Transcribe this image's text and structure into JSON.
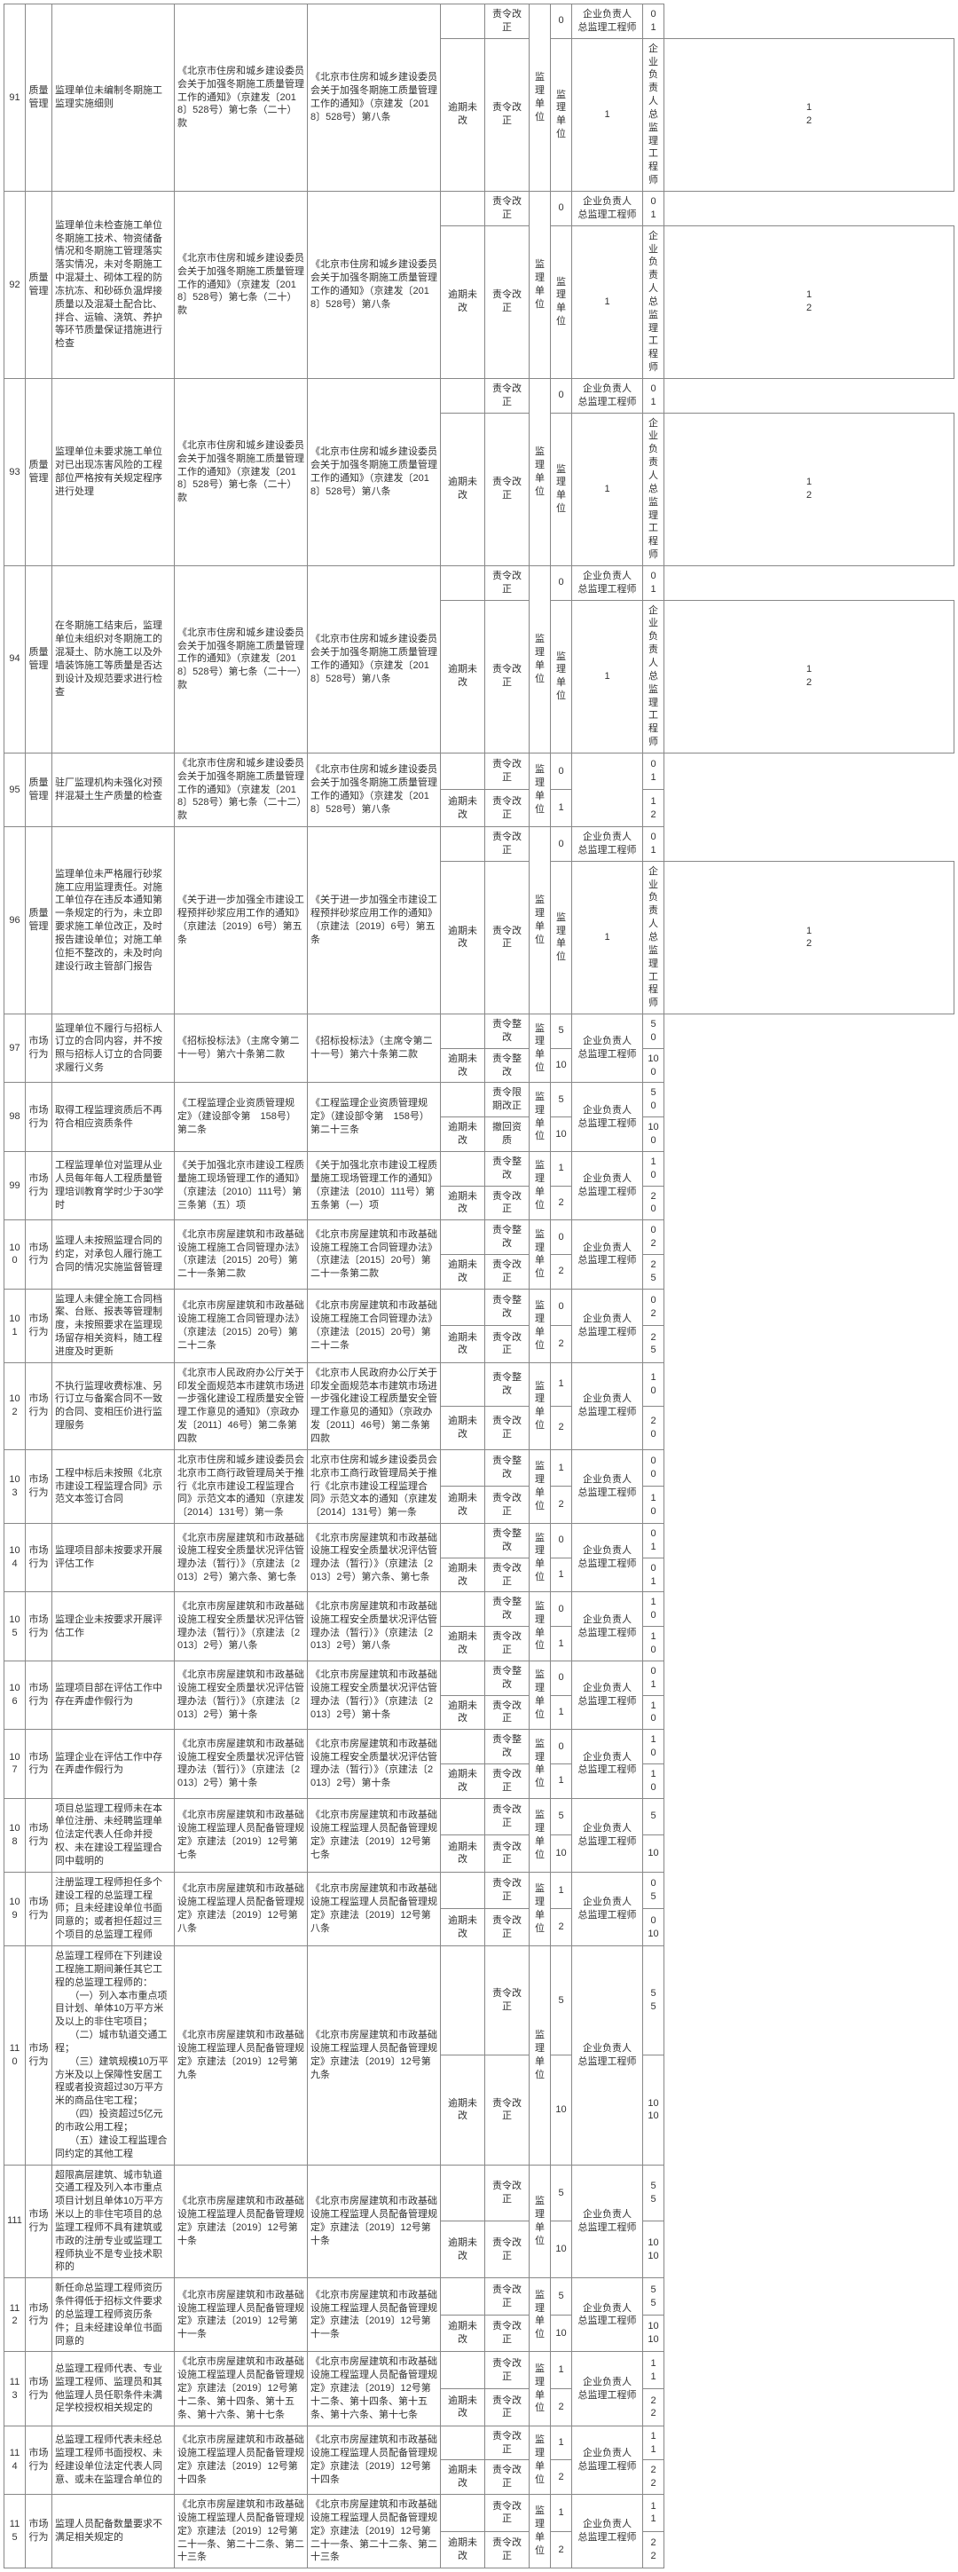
{
  "table": {
    "rows": [
      {
        "id": "91",
        "cat": "质量管理",
        "desc": "监理单位未编制冬期施工监理实施细则",
        "law1": "《北京市住房和城乡建设委员会关于加强冬期施工质量管理工作的通知》（京建发〔2018〕528号）第七条（二十）款",
        "law2": "《北京市住房和城乡建设委员会关于加强冬期施工质量管理工作的通知》（京建发〔2018〕528号）第八条",
        "sub": [
          {
            "s": "",
            "r": "责令改正",
            "u": "监理单位",
            "n": "0",
            "p": "企业负责人\n总监理工程师",
            "v": "0\n1"
          },
          {
            "s": "逾期未改",
            "r": "责令改正",
            "u": "监理单位",
            "n": "1",
            "p": "企业负责人\n总监理工程师",
            "v": "1\n2"
          }
        ]
      },
      {
        "id": "92",
        "cat": "质量管理",
        "desc": "监理单位未检查施工单位冬期施工技术、物资储备情况和冬期施工管理落实落实情况，未对冬期施工中混凝土、砌体工程的防冻抗冻、和砂砾负温焊接质量以及混凝土配合比、拌合、运输、浇筑、养护等环节质量保证措施进行检查",
        "law1": "《北京市住房和城乡建设委员会关于加强冬期施工质量管理工作的通知》（京建发〔2018〕528号）第七条（二十）款",
        "law2": "《北京市住房和城乡建设委员会关于加强冬期施工质量管理工作的通知》（京建发〔2018〕528号）第八条",
        "sub": [
          {
            "s": "",
            "r": "责令改正",
            "u": "监理单位",
            "n": "0",
            "p": "企业负责人\n总监理工程师",
            "v": "0\n1"
          },
          {
            "s": "逾期未改",
            "r": "责令改正",
            "u": "监理单位",
            "n": "1",
            "p": "企业负责人\n总监理工程师",
            "v": "1\n2"
          }
        ]
      },
      {
        "id": "93",
        "cat": "质量管理",
        "desc": "监理单位未要求施工单位对已出现冻害风险的工程部位严格按有关规定程序进行处理",
        "law1": "《北京市住房和城乡建设委员会关于加强冬期施工质量管理工作的通知》（京建发〔2018〕528号）第七条（二十）款",
        "law2": "《北京市住房和城乡建设委员会关于加强冬期施工质量管理工作的通知》（京建发〔2018〕528号）第八条",
        "sub": [
          {
            "s": "",
            "r": "责令改正",
            "u": "监理单位",
            "n": "0",
            "p": "企业负责人\n总监理工程师",
            "v": "0\n1"
          },
          {
            "s": "逾期未改",
            "r": "责令改正",
            "u": "监理单位",
            "n": "1",
            "p": "企业负责人\n总监理工程师",
            "v": "1\n2"
          }
        ]
      },
      {
        "id": "94",
        "cat": "质量管理",
        "desc": "在冬期施工结束后，监理单位未组织对冬期施工的混凝土、防水施工以及外墙装饰施工等质量是否达到设计及规范要求进行检查",
        "law1": "《北京市住房和城乡建设委员会关于加强冬期施工质量管理工作的通知》（京建发〔2018〕528号）第七条（二十一）款",
        "law2": "《北京市住房和城乡建设委员会关于加强冬期施工质量管理工作的通知》（京建发〔2018〕528号）第八条",
        "sub": [
          {
            "s": "",
            "r": "责令改正",
            "u": "监理单位",
            "n": "0",
            "p": "企业负责人\n总监理工程师",
            "v": "0\n1"
          },
          {
            "s": "逾期未改",
            "r": "责令改正",
            "u": "监理单位",
            "n": "1",
            "p": "企业负责人\n总监理工程师",
            "v": "1\n2"
          }
        ]
      },
      {
        "id": "95",
        "cat": "质量管理",
        "desc": "驻厂监理机构未强化对预拌混凝土生产质量的检查",
        "law1": "《北京市住房和城乡建设委员会关于加强冬期施工质量管理工作的通知》（京建发〔2018〕528号）第七条（二十二）款",
        "law2": "《北京市住房和城乡建设委员会关于加强冬期施工质量管理工作的通知》（京建发〔2018〕528号）第八条",
        "sub": [
          {
            "s": "",
            "r": "责令改正",
            "u": "监理单位",
            "n": "0",
            "p": "",
            "v": "0\n1"
          },
          {
            "s": "逾期未改",
            "r": "责令改正",
            "u": "",
            "n": "1",
            "p": "",
            "v": "1\n2"
          }
        ]
      },
      {
        "id": "96",
        "cat": "质量管理",
        "desc": "监理单位未严格履行砂浆施工应用监理责任。对施工单位存在违反本通知第一条规定的行为，未立即要求施工单位改正，及时报告建设单位；对施工单位拒不整改的，未及时向建设行政主管部门报告",
        "law1": "《关于进一步加强全市建设工程预拌砂浆应用工作的通知》（京建法〔2019〕6号）第五条",
        "law2": "《关于进一步加强全市建设工程预拌砂浆应用工作的通知》（京建法〔2019〕6号）第五条",
        "sub": [
          {
            "s": "",
            "r": "责令改正",
            "u": "监理单位",
            "n": "0",
            "p": "企业负责人\n总监理工程师",
            "v": "0\n1"
          },
          {
            "s": "逾期未改",
            "r": "责令改正",
            "u": "监理单位",
            "n": "1",
            "p": "企业负责人\n总监理工程师",
            "v": "1\n2"
          }
        ]
      },
      {
        "id": "97",
        "cat": "市场行为",
        "desc": "监理单位不履行与招标人订立的合同内容，并不按照与招标人订立的合同要求履行义务",
        "law1": "《招标投标法》（主席令第二十一号）第六十条第二款",
        "law2": "《招标投标法》（主席令第二十一号）第六十条第二款",
        "sub": [
          {
            "s": "",
            "r": "责令整改",
            "u": "监理单位",
            "n": "5",
            "p": "企业负责人\n总监理工程师",
            "v": "5\n0"
          },
          {
            "s": "逾期未改",
            "r": "责令整改",
            "u": "",
            "n": "10",
            "p": "",
            "v": "10\n0"
          }
        ]
      },
      {
        "id": "98",
        "cat": "市场行为",
        "desc": "取得工程监理资质后不再符合相应资质条件",
        "law1": "《工程监理企业资质管理规定》（建设部令第　158号）第二条",
        "law2": "《工程监理企业资质管理规定》（建设部令第　158号）第二十三条",
        "sub": [
          {
            "s": "",
            "r": "责令限期改正",
            "u": "监理单位",
            "n": "5",
            "p": "企业负责人\n总监理工程师",
            "v": "5\n0"
          },
          {
            "s": "逾期未改",
            "r": "撤回资质",
            "u": "",
            "n": "10",
            "p": "",
            "v": "10\n0"
          }
        ]
      },
      {
        "id": "99",
        "cat": "市场行为",
        "desc": "工程监理单位对监理从业人员每年每人工程质量管理培训教育学时少于30学时",
        "law1": "《关于加强北京市建设工程质量施工现场管理工作的通知》（京建法〔2010〕111号）第三条第（五）项",
        "law2": "《关于加强北京市建设工程质量施工现场管理工作的通知》（京建法〔2010〕111号）第五条第（一）项",
        "sub": [
          {
            "s": "",
            "r": "责令整改",
            "u": "监理单位",
            "n": "1",
            "p": "企业负责人\n总监理工程师",
            "v": "1\n0"
          },
          {
            "s": "逾期未改",
            "r": "责令改正",
            "u": "",
            "n": "2",
            "p": "",
            "v": "2\n0"
          }
        ]
      },
      {
        "id": "100",
        "cat": "市场行为",
        "desc": "监理人未按照监理合同的约定，对承包人履行施工合同的情况实施监督管理",
        "law1": "《北京市房屋建筑和市政基础设施工程施工合同管理办法》（京建法〔2015〕20号）第二十一条第二款",
        "law2": "《北京市房屋建筑和市政基础设施工程施工合同管理办法》（京建法〔2015〕20号）第二十一条第二款",
        "sub": [
          {
            "s": "",
            "r": "责令整改",
            "u": "监理单位",
            "n": "0",
            "p": "企业负责人\n总监理工程师",
            "v": "0\n2"
          },
          {
            "s": "逾期未改",
            "r": "责令改正",
            "u": "",
            "n": "2",
            "p": "",
            "v": "2\n5"
          }
        ]
      },
      {
        "id": "101",
        "cat": "市场行为",
        "desc": "监理人未健全施工合同档案、台账、报表等管理制度，未按照要求在监理现场留存相关资料，随工程进度及时更新",
        "law1": "《北京市房屋建筑和市政基础设施工程施工合同管理办法》（京建法〔2015〕20号）第二十二条",
        "law2": "《北京市房屋建筑和市政基础设施工程施工合同管理办法》（京建法〔2015〕20号）第二十二条",
        "sub": [
          {
            "s": "",
            "r": "责令整改",
            "u": "监理单位",
            "n": "0",
            "p": "企业负责人\n总监理工程师",
            "v": "0\n2"
          },
          {
            "s": "逾期未改",
            "r": "责令改正",
            "u": "",
            "n": "2",
            "p": "",
            "v": "2\n5"
          }
        ]
      },
      {
        "id": "102",
        "cat": "市场行为",
        "desc": "不执行监理收费标准、另行订立与备案合同不一致的合同、变相压价进行监理服务",
        "law1": "《北京市人民政府办公厅关于印发全面规范本市建筑市场进一步强化建设工程质量安全管理工作意见的通知》（京政办发〔2011〕46号）第二条第四款",
        "law2": "《北京市人民政府办公厅关于印发全面规范本市建筑市场进一步强化建设工程质量安全管理工作意见的通知》（京政办发〔2011〕46号）第二条第四款",
        "sub": [
          {
            "s": "",
            "r": "责令整改",
            "u": "监理单位",
            "n": "1",
            "p": "企业负责人\n总监理工程师",
            "v": "1\n0"
          },
          {
            "s": "逾期未改",
            "r": "责令改正",
            "u": "",
            "n": "2",
            "p": "",
            "v": "2\n0"
          }
        ]
      },
      {
        "id": "103",
        "cat": "市场行为",
        "desc": "工程中标后未按照《北京市建设工程监理合同》示范文本签订合同",
        "law1": "北京市住房和城乡建设委员会北京市工商行政管理局关于推行《北京市建设工程监理合同》示范文本的通知（京建发〔2014〕131号）第一条",
        "law2": "北京市住房和城乡建设委员会北京市工商行政管理局关于推行《北京市建设工程监理合同》示范文本的通知（京建发〔2014〕131号）第一条",
        "sub": [
          {
            "s": "",
            "r": "责令整改",
            "u": "监理单位",
            "n": "1",
            "p": "企业负责人\n总监理工程师",
            "v": "0\n0"
          },
          {
            "s": "逾期未改",
            "r": "责令改正",
            "u": "",
            "n": "2",
            "p": "",
            "v": "1\n0"
          }
        ]
      },
      {
        "id": "104",
        "cat": "市场行为",
        "desc": "监理项目部未按要求开展评估工作",
        "law1": "《北京市房屋建筑和市政基础设施工程安全质量状况评估管理办法（暂行）》（京建法〔2013〕2号）第六条、第七条",
        "law2": "《北京市房屋建筑和市政基础设施工程安全质量状况评估管理办法（暂行）》（京建法〔2013〕2号）第六条、第七条",
        "sub": [
          {
            "s": "",
            "r": "责令整改",
            "u": "监理单位",
            "n": "0",
            "p": "企业负责人\n总监理工程师",
            "v": "0\n1"
          },
          {
            "s": "逾期未改",
            "r": "责令改正",
            "u": "",
            "n": "1",
            "p": "",
            "v": "0\n1"
          }
        ]
      },
      {
        "id": "105",
        "cat": "市场行为",
        "desc": "监理企业未按要求开展评估工作",
        "law1": "《北京市房屋建筑和市政基础设施工程安全质量状况评估管理办法（暂行）》（京建法〔2013〕2号）第八条",
        "law2": "《北京市房屋建筑和市政基础设施工程安全质量状况评估管理办法（暂行）》（京建法〔2013〕2号）第八条",
        "sub": [
          {
            "s": "",
            "r": "责令整改",
            "u": "监理单位",
            "n": "0",
            "p": "企业负责人\n总监理工程师",
            "v": "1\n0"
          },
          {
            "s": "逾期未改",
            "r": "责令改正",
            "u": "",
            "n": "1",
            "p": "",
            "v": "1\n0"
          }
        ]
      },
      {
        "id": "106",
        "cat": "市场行为",
        "desc": "监理项目部在评估工作中存在弄虚作假行为",
        "law1": "《北京市房屋建筑和市政基础设施工程安全质量状况评估管理办法（暂行）》（京建法〔2013〕2号）第十条",
        "law2": "《北京市房屋建筑和市政基础设施工程安全质量状况评估管理办法（暂行）》（京建法〔2013〕2号）第十条",
        "sub": [
          {
            "s": "",
            "r": "责令整改",
            "u": "监理单位",
            "n": "0",
            "p": "企业负责人\n总监理工程师",
            "v": "0\n1"
          },
          {
            "s": "逾期未改",
            "r": "责令改正",
            "u": "",
            "n": "1",
            "p": "",
            "v": "1\n0"
          }
        ]
      },
      {
        "id": "107",
        "cat": "市场行为",
        "desc": "监理企业在评估工作中存在弄虚作假行为",
        "law1": "《北京市房屋建筑和市政基础设施工程安全质量状况评估管理办法（暂行）》（京建法〔2013〕2号）第十条",
        "law2": "《北京市房屋建筑和市政基础设施工程安全质量状况评估管理办法（暂行）》（京建法〔2013〕2号）第十条",
        "sub": [
          {
            "s": "",
            "r": "责令整改",
            "u": "监理单位",
            "n": "0",
            "p": "企业负责人\n总监理工程师",
            "v": "1\n0"
          },
          {
            "s": "逾期未改",
            "r": "责令改正",
            "u": "",
            "n": "1",
            "p": "",
            "v": "1\n0"
          }
        ]
      },
      {
        "id": "108",
        "cat": "市场行为",
        "desc": "项目总监理工程师未在本单位注册、未经聘监理单位法定代表人任命并授权、未在建设工程监理合同中载明的",
        "law1": "《北京市房屋建筑和市政基础设施工程监理人员配备管理规定》京建法〔2019〕12号第七条",
        "law2": "《北京市房屋建筑和市政基础设施工程监理人员配备管理规定》京建法〔2019〕12号第七条",
        "sub": [
          {
            "s": "",
            "r": "责令改正",
            "u": "监理单位",
            "n": "5",
            "p": "企业负责人\n总监理工程师",
            "v": "5"
          },
          {
            "s": "逾期未改",
            "r": "责令改正",
            "u": "",
            "n": "10",
            "p": "",
            "v": "10"
          }
        ]
      },
      {
        "id": "109",
        "cat": "市场行为",
        "desc": "注册监理工程师担任多个建设工程的总监理工程师；且未经建设单位书面同意的；或者担任超过三个项目的总监理工程师",
        "law1": "《北京市房屋建筑和市政基础设施工程监理人员配备管理规定》京建法〔2019〕12号第八条",
        "law2": "《北京市房屋建筑和市政基础设施工程监理人员配备管理规定》京建法〔2019〕12号第八条",
        "sub": [
          {
            "s": "",
            "r": "责令改正",
            "u": "监理单位",
            "n": "1",
            "p": "企业负责人\n总监理工程师",
            "v": "0\n5"
          },
          {
            "s": "逾期未改",
            "r": "责令改正",
            "u": "",
            "n": "2",
            "p": "",
            "v": "0\n10"
          }
        ]
      },
      {
        "id": "110",
        "cat": "市场行为",
        "desc": "总监理工程师在下列建设工程施工期间兼任其它工程的总监理工程师的：\n　　（一）列入本市重点项目计划、单体10万平方米及以上的非住宅项目；\n　　（二）城市轨道交通工程；\n　　（三）建筑规模10万平方米及以上保障性安居工程或者投资超过30万平方米的商品住宅工程；\n　　（四）投资超过5亿元的市政公用工程；\n　　（五）建设工程监理合同约定的其他工程",
        "law1": "《北京市房屋建筑和市政基础设施工程监理人员配备管理规定》京建法〔2019〕12号第九条",
        "law2": "《北京市房屋建筑和市政基础设施工程监理人员配备管理规定》京建法〔2019〕12号第九条",
        "sub": [
          {
            "s": "",
            "r": "责令改正",
            "u": "监理单位",
            "n": "5",
            "p": "企业负责人\n总监理工程师",
            "v": "5\n5"
          },
          {
            "s": "逾期未改",
            "r": "责令改正",
            "u": "",
            "n": "10",
            "p": "",
            "v": "10\n10"
          }
        ]
      },
      {
        "id": "111",
        "cat": "市场行为",
        "desc": "超限高层建筑、城市轨道交通工程及列入本市重点项目计划且单体10万平方米以上的非住宅项目的总监理工程师不具有建筑或市政的注册专业或监理工程师执业不是专业技术职称的",
        "law1": "《北京市房屋建筑和市政基础设施工程监理人员配备管理规定》京建法〔2019〕12号第十条",
        "law2": "《北京市房屋建筑和市政基础设施工程监理人员配备管理规定》京建法〔2019〕12号第十条",
        "sub": [
          {
            "s": "",
            "r": "责令改正",
            "u": "监理单位",
            "n": "5",
            "p": "企业负责人\n总监理工程师",
            "v": "5\n5"
          },
          {
            "s": "逾期未改",
            "r": "责令改正",
            "u": "",
            "n": "10",
            "p": "",
            "v": "10\n10"
          }
        ]
      },
      {
        "id": "112",
        "cat": "市场行为",
        "desc": "新任命总监理工程师资历条件得低于招标文件要求的总监理工程师资历条件；且未经建设单位书面同意的",
        "law1": "《北京市房屋建筑和市政基础设施工程监理人员配备管理规定》京建法〔2019〕12号第十一条",
        "law2": "《北京市房屋建筑和市政基础设施工程监理人员配备管理规定》京建法〔2019〕12号第十一条",
        "sub": [
          {
            "s": "",
            "r": "责令改正",
            "u": "监理单位",
            "n": "5",
            "p": "企业负责人\n总监理工程师",
            "v": "5\n5"
          },
          {
            "s": "逾期未改",
            "r": "责令改正",
            "u": "",
            "n": "10",
            "p": "",
            "v": "10\n10"
          }
        ]
      },
      {
        "id": "113",
        "cat": "市场行为",
        "desc": "总监理工程师代表、专业监理工程师、监理员和其他监理人员任职条件未满足学校授权相关规定的",
        "law1": "《北京市房屋建筑和市政基础设施工程监理人员配备管理规定》京建法〔2019〕12号第十二条、第十四条、第十五条、第十六条、第十七条",
        "law2": "《北京市房屋建筑和市政基础设施工程监理人员配备管理规定》京建法〔2019〕12号第十二条、第十四条、第十五条、第十六条、第十七条",
        "sub": [
          {
            "s": "",
            "r": "责令改正",
            "u": "监理单位",
            "n": "1",
            "p": "企业负责人\n总监理工程师",
            "v": "1\n1"
          },
          {
            "s": "逾期未改",
            "r": "责令改正",
            "u": "",
            "n": "2",
            "p": "",
            "v": "2\n2"
          }
        ]
      },
      {
        "id": "114",
        "cat": "市场行为",
        "desc": "总监理工程师代表未经总监理工程师书面授权、未经建设单位法定代表人同意、或未在监理合单位的",
        "law1": "《北京市房屋建筑和市政基础设施工程监理人员配备管理规定》京建法〔2019〕12号第十四条",
        "law2": "《北京市房屋建筑和市政基础设施工程监理人员配备管理规定》京建法〔2019〕12号第十四条",
        "sub": [
          {
            "s": "",
            "r": "责令改正",
            "u": "监理单位",
            "n": "1",
            "p": "企业负责人\n总监理工程师",
            "v": "1\n1"
          },
          {
            "s": "逾期未改",
            "r": "责令改正",
            "u": "",
            "n": "2",
            "p": "",
            "v": "2\n2"
          }
        ]
      },
      {
        "id": "115",
        "cat": "市场行为",
        "desc": "监理人员配备数量要求不满足相关规定的",
        "law1": "《北京市房屋建筑和市政基础设施工程监理人员配备管理规定》京建法〔2019〕12号第二十一条、第二十二条、第二十三条",
        "law2": "《北京市房屋建筑和市政基础设施工程监理人员配备管理规定》京建法〔2019〕12号第二十一条、第二十二条、第二十三条",
        "sub": [
          {
            "s": "",
            "r": "责令改正",
            "u": "监理单位",
            "n": "1",
            "p": "企业负责人\n总监理工程师",
            "v": "1\n1"
          },
          {
            "s": "逾期未改",
            "r": "责令改正",
            "u": "",
            "n": "2",
            "p": "",
            "v": "2\n2"
          }
        ]
      }
    ]
  }
}
